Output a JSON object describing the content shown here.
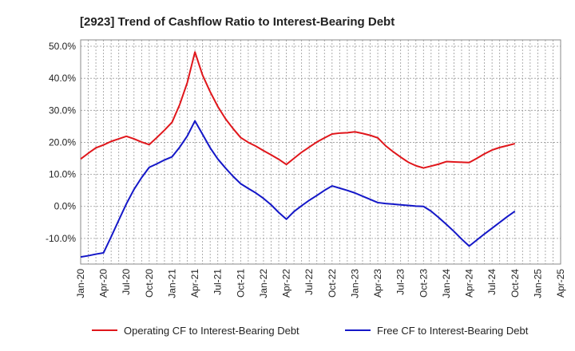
{
  "chart_data": {
    "type": "line",
    "title": "[2923]  Trend of Cashflow Ratio to Interest-Bearing Debt",
    "xlabel": "",
    "ylabel": "",
    "x_tick_labels": [
      "Jan-20",
      "Apr-20",
      "Jul-20",
      "Oct-20",
      "Jan-21",
      "Apr-21",
      "Jul-21",
      "Oct-21",
      "Jan-22",
      "Apr-22",
      "Jul-22",
      "Oct-22",
      "Jan-23",
      "Apr-23",
      "Jul-23",
      "Oct-23",
      "Jan-24",
      "Apr-24",
      "Jul-24",
      "Oct-24",
      "Jan-25",
      "Apr-25"
    ],
    "y_tick_labels": [
      "50.0%",
      "40.0%",
      "30.0%",
      "20.0%",
      "10.0%",
      "0.0%",
      "-10.0%"
    ],
    "y_ticks": [
      50,
      40,
      30,
      20,
      10,
      0,
      -10
    ],
    "ylim": [
      -18,
      52
    ],
    "grid": true,
    "legend_position": "bottom",
    "x": [
      "Jan-20",
      "Feb-20",
      "Mar-20",
      "Apr-20",
      "May-20",
      "Jun-20",
      "Jul-20",
      "Aug-20",
      "Sep-20",
      "Oct-20",
      "Nov-20",
      "Dec-20",
      "Jan-21",
      "Feb-21",
      "Mar-21",
      "Apr-21",
      "May-21",
      "Jun-21",
      "Jul-21",
      "Aug-21",
      "Sep-21",
      "Oct-21",
      "Nov-21",
      "Dec-21",
      "Jan-22",
      "Feb-22",
      "Mar-22",
      "Apr-22",
      "May-22",
      "Jun-22",
      "Jul-22",
      "Aug-22",
      "Sep-22",
      "Oct-22",
      "Nov-22",
      "Dec-22",
      "Jan-23",
      "Feb-23",
      "Mar-23",
      "Apr-23",
      "May-23",
      "Jun-23",
      "Jul-23",
      "Aug-23",
      "Sep-23",
      "Oct-23",
      "Nov-23",
      "Dec-23",
      "Jan-24",
      "Feb-24",
      "Mar-24",
      "Apr-24",
      "May-24",
      "Jun-24",
      "Jul-24",
      "Aug-24",
      "Sep-24",
      "Oct-24"
    ],
    "series": [
      {
        "name": "Operating CF to Interest-Bearing Debt",
        "color": "#e0161b",
        "values": [
          14.8,
          16.6,
          18.3,
          19.2,
          20.3,
          21.1,
          21.9,
          21.1,
          20.1,
          19.3,
          21.5,
          23.8,
          26.3,
          31.8,
          38.7,
          48.2,
          41.0,
          35.8,
          31.2,
          27.4,
          24.3,
          21.5,
          20.0,
          18.8,
          17.4,
          16.1,
          14.7,
          13.1,
          15.0,
          16.9,
          18.5,
          20.1,
          21.4,
          22.6,
          22.9,
          23.0,
          23.3,
          22.8,
          22.2,
          21.4,
          19.0,
          17.1,
          15.4,
          13.8,
          12.7,
          12.0,
          12.6,
          13.2,
          14.0,
          13.9,
          13.8,
          13.7,
          15.0,
          16.4,
          17.6,
          18.4,
          19.0,
          19.6
        ]
      },
      {
        "name": "Free CF to Interest-Bearing Debt",
        "color": "#1417c8",
        "values": [
          -15.8,
          -15.4,
          -14.9,
          -14.5,
          -9.5,
          -4.3,
          0.8,
          5.3,
          9.0,
          12.2,
          13.3,
          14.5,
          15.5,
          18.5,
          22.0,
          26.7,
          22.5,
          18.3,
          14.8,
          12.0,
          9.4,
          7.1,
          5.6,
          4.2,
          2.5,
          0.5,
          -1.9,
          -4.0,
          -1.6,
          0.2,
          1.9,
          3.4,
          5.0,
          6.4,
          5.7,
          5.0,
          4.2,
          3.2,
          2.2,
          1.2,
          0.9,
          0.7,
          0.5,
          0.3,
          0.1,
          0.0,
          -1.5,
          -3.5,
          -5.6,
          -7.8,
          -10.2,
          -12.4,
          -10.5,
          -8.6,
          -6.8,
          -5.0,
          -3.2,
          -1.5
        ]
      }
    ]
  }
}
